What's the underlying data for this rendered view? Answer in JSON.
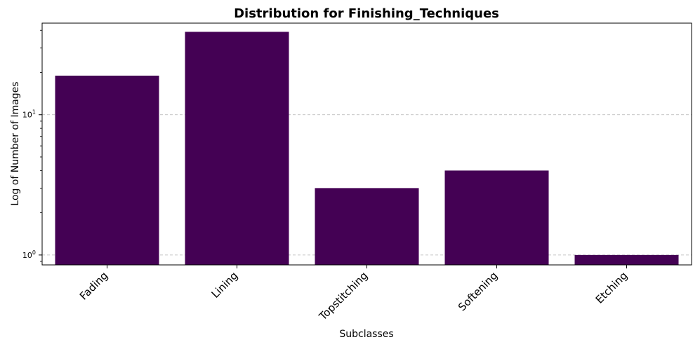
{
  "chart_data": {
    "type": "bar",
    "title": "Distribution for Finishing_Techniques",
    "xlabel": "Subclasses",
    "ylabel": "Log of Number of Images",
    "yscale": "log",
    "ylim": [
      0.85,
      45
    ],
    "categories": [
      "Fading",
      "Lining",
      "Topstitching",
      "Softening",
      "Etching"
    ],
    "values": [
      19,
      39,
      3,
      4,
      1
    ],
    "yticks": [
      {
        "value": 1,
        "base": "10",
        "exp": "0"
      },
      {
        "value": 10,
        "base": "10",
        "exp": "1"
      }
    ],
    "bar_color": "#440154",
    "grid": "y-dashed",
    "xtick_rotation": -45
  }
}
